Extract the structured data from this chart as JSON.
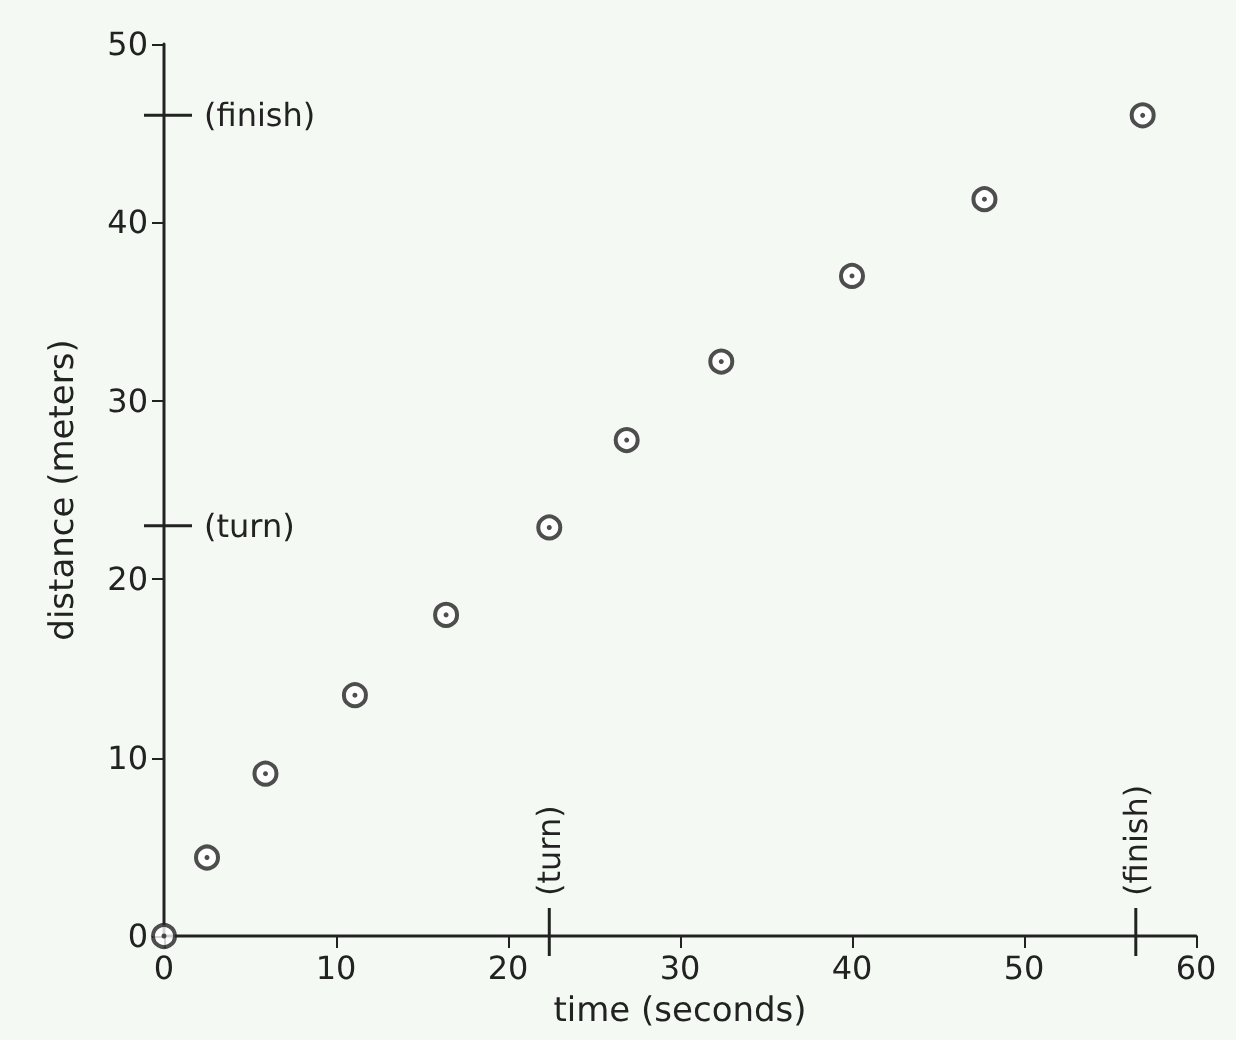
{
  "chart_data": {
    "type": "scatter",
    "xlabel": "time (seconds)",
    "ylabel": "distance (meters)",
    "x": [
      0,
      2.5,
      5.9,
      11.1,
      16.4,
      22.4,
      26.9,
      32.4,
      40.0,
      47.7,
      56.9
    ],
    "values": [
      0,
      4.4,
      9.1,
      13.5,
      18.0,
      22.9,
      27.8,
      32.2,
      37.0,
      41.3,
      46.0
    ],
    "color": "#222222",
    "marker": "circle",
    "xlim": [
      0,
      60
    ],
    "xticks": [
      0,
      10,
      20,
      30,
      40,
      50,
      60
    ],
    "ylim": [
      0,
      50
    ],
    "yticks": [
      0,
      10,
      20,
      30,
      40,
      50
    ],
    "ref_lines": [
      {
        "axis": "y",
        "value": 23,
        "label": "(turn)"
      },
      {
        "axis": "y",
        "value": 46,
        "label": "(finish)"
      },
      {
        "axis": "x",
        "value": 22.4,
        "label": "(turn)"
      },
      {
        "axis": "x",
        "value": 56.5,
        "label": "(finish)"
      }
    ]
  }
}
